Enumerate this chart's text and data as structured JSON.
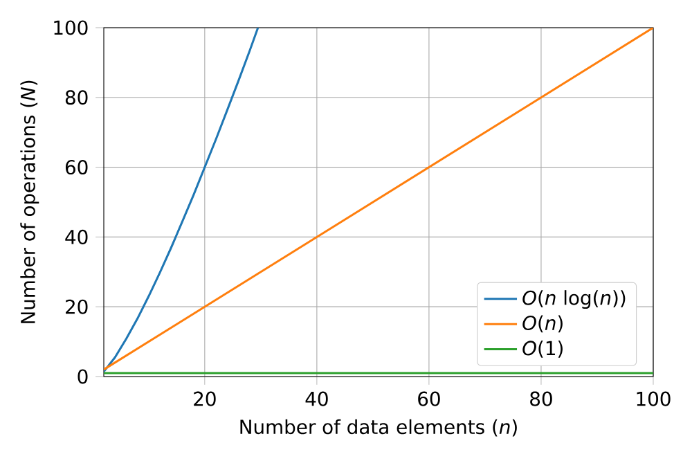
{
  "chart_data": {
    "type": "line",
    "xlabel": "Number of data elements (*n*)",
    "ylabel": "Number of operations (*N*)",
    "xlim": [
      2,
      100
    ],
    "ylim": [
      0,
      100
    ],
    "xticks": [
      20,
      40,
      60,
      80,
      100
    ],
    "yticks": [
      0,
      20,
      40,
      60,
      80,
      100
    ],
    "grid": true,
    "legend": "bottom right",
    "marker": "none",
    "line_style": "solid",
    "series": [
      {
        "name": "*O*(*n* log(*n*))",
        "color": "#1f77b4",
        "x": [
          2,
          4,
          6,
          8,
          10,
          12,
          14,
          16,
          18,
          20,
          22,
          24,
          26,
          28,
          29.5
        ],
        "values": [
          1.4,
          5.5,
          10.8,
          16.6,
          23,
          29.8,
          36.9,
          44.4,
          52,
          60,
          68,
          76.3,
          84.7,
          93.3,
          100
        ]
      },
      {
        "name": "*O*(*n*)",
        "color": "#ff7f0e",
        "x": [
          2,
          100
        ],
        "values": [
          2,
          100
        ]
      },
      {
        "name": "*O*(1)",
        "color": "#2ca02c",
        "x": [
          2,
          100
        ],
        "values": [
          1,
          1
        ]
      }
    ]
  }
}
